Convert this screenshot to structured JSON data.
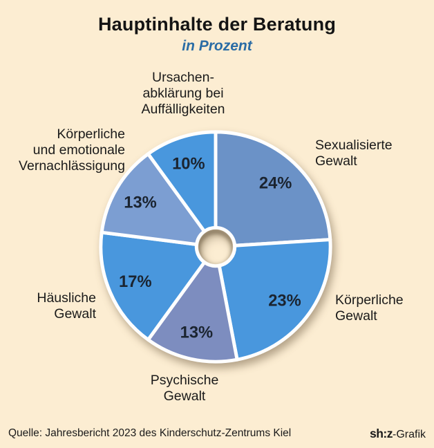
{
  "title": "Hauptinhalte der Beratung",
  "subtitle": "in Prozent",
  "source": "Quelle: Jahresbericht 2023 des Kinderschutz-Zentrums Kiel",
  "brand": {
    "logo": "sh:z",
    "suffix": "-Grafik"
  },
  "colors": {
    "background": "#FCEDD2",
    "subtitle_blue": "#2A6CA5",
    "divider_white": "#FFFFFF",
    "percent_text": "#1B2430",
    "bright_blue": "#4997DD",
    "slate_blue": "#6B92C7",
    "light_slate_blue": "#7C9ED2",
    "gray_blue": "#7D8DBF"
  },
  "chart_data": {
    "type": "pie",
    "donut": true,
    "start_angle_deg": 0,
    "direction": "clockwise",
    "labels_position": "outside",
    "title": "Hauptinhalte der Beratung",
    "subtitle": "in Prozent",
    "unit": "%",
    "segments": [
      {
        "label": "Sexualisierte Gewalt",
        "value": 24,
        "pct_label": "24%",
        "color": "#6B92C7",
        "display": "Sexualisierte\nGewalt"
      },
      {
        "label": "Körperliche Gewalt",
        "value": 23,
        "pct_label": "23%",
        "color": "#4997DD",
        "display": "Körperliche\nGewalt"
      },
      {
        "label": "Psychische Gewalt",
        "value": 13,
        "pct_label": "13%",
        "color": "#7D8DBF",
        "display": "Psychische\nGewalt"
      },
      {
        "label": "Häusliche Gewalt",
        "value": 17,
        "pct_label": "17%",
        "color": "#4997DD",
        "display": "Häusliche\nGewalt"
      },
      {
        "label": "Körperliche und emotionale Vernachlässigung",
        "value": 13,
        "pct_label": "13%",
        "color": "#7C9ED2",
        "display": "Körperliche\nund emotionale\nVernachlässigung"
      },
      {
        "label": "Ursachenabklärung bei Auffälligkeiten",
        "value": 10,
        "pct_label": "10%",
        "color": "#4997DD",
        "display": "Ursachen-\nabklärung bei\nAuffälligkeiten"
      }
    ]
  }
}
